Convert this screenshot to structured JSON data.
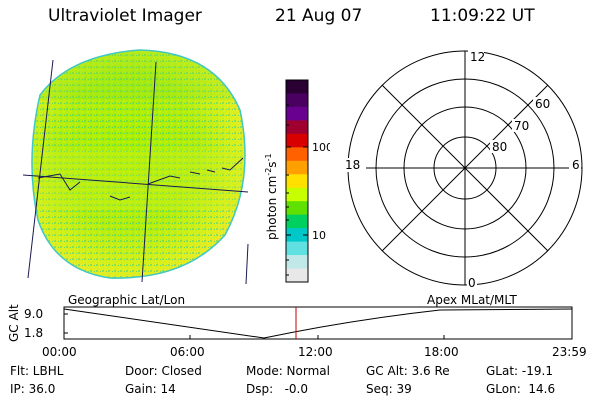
{
  "header": {
    "title": "Ultraviolet Imager",
    "date": "21 Aug 07",
    "time": "11:09:22 UT"
  },
  "colorbar": {
    "label": "photon cm",
    "label_sup1": "-2",
    "label_mid": "s",
    "label_sup2": "-1",
    "ticks": [
      "100",
      "10"
    ],
    "scale": "log",
    "colors": [
      "#2a0032",
      "#4a0060",
      "#6a0090",
      "#a00030",
      "#d80000",
      "#ff6000",
      "#ffa000",
      "#ffe000",
      "#c8ff00",
      "#60e000",
      "#00d060",
      "#00c8c8",
      "#60e0e0",
      "#c0e8e8",
      "#e8e8e8"
    ]
  },
  "polar_plot": {
    "mlt_labels": [
      "12",
      "18",
      "6",
      "0"
    ],
    "lat_labels": [
      "60",
      "70",
      "80"
    ]
  },
  "strip_chart": {
    "left_title": "Geographic Lat/Lon",
    "right_title": "Apex MLat/MLT",
    "ylabel": "GC Alt",
    "y_ticks": [
      "9.0",
      "1.8"
    ],
    "x_ticks": [
      "00:00",
      "06:00",
      "12:00",
      "18:00",
      "23:59"
    ],
    "marker_time": "11:09:22",
    "marker_color": "#c00000"
  },
  "info": {
    "row1": [
      "Flt: LBHL",
      "Door: Closed",
      "Mode: Normal",
      "GC Alt: 3.6 Re",
      "GLat: -19.1"
    ],
    "row2": [
      "IP: 36.0",
      "Gain: 14",
      "Dsp:   -0.0",
      "Seq: 39",
      "GLon:  14.6"
    ]
  }
}
